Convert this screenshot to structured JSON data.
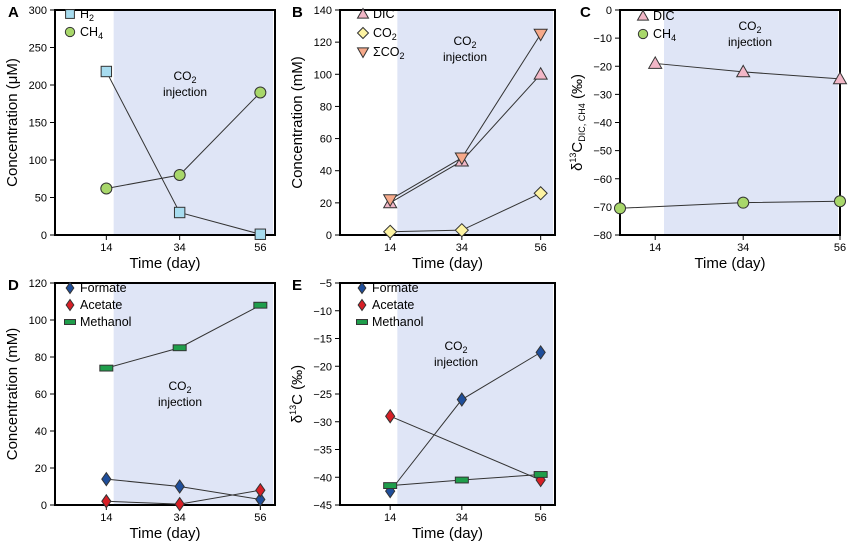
{
  "colors": {
    "shade": "#dfe5f6",
    "h2": "#a7dcef",
    "ch4": "#a8d76a",
    "dic": "#f2b7c7",
    "co2": "#fdf3a2",
    "sco2": "#f6a98a",
    "formate": "#1f4e9a",
    "acetate": "#d71f26",
    "methanol": "#1f9e4b"
  },
  "chart_data": [
    {
      "id": "A",
      "letter": "A",
      "type": "line",
      "x": [
        14,
        34,
        56
      ],
      "x_ticks": [
        "14",
        "34",
        "56"
      ],
      "xlabel": "Time (day)",
      "ylabel": "Concentration (μM)",
      "ylim": [
        0,
        300
      ],
      "y_ticks": [
        0,
        50,
        100,
        150,
        200,
        250,
        300
      ],
      "shade_from": 16,
      "annotation": {
        "line1": "CO2",
        "line2": "injection"
      },
      "series": [
        {
          "name": "H2",
          "legend_main": "H",
          "legend_sub": "2",
          "marker": "square",
          "color": "#a7dcef",
          "values": [
            218,
            30,
            1
          ]
        },
        {
          "name": "CH4",
          "legend_main": "CH",
          "legend_sub": "4",
          "marker": "circle",
          "color": "#a8d76a",
          "values": [
            62,
            80,
            190
          ]
        }
      ]
    },
    {
      "id": "B",
      "letter": "B",
      "type": "line",
      "x": [
        14,
        34,
        56
      ],
      "x_ticks": [
        "14",
        "34",
        "56"
      ],
      "xlabel": "Time (day)",
      "ylabel": "Concentration (mM)",
      "ylim": [
        0,
        140
      ],
      "y_ticks": [
        0,
        20,
        40,
        60,
        80,
        100,
        120,
        140
      ],
      "shade_from": 16,
      "annotation": {
        "line1": "CO2",
        "line2": "injection"
      },
      "series": [
        {
          "name": "DIC",
          "legend_main": "DIC",
          "legend_sub": "",
          "marker": "triangle-up",
          "color": "#f2b7c7",
          "values": [
            20,
            46,
            100
          ]
        },
        {
          "name": "CO2",
          "legend_main": "CO",
          "legend_sub": "2",
          "marker": "diamond",
          "color": "#fdf3a2",
          "values": [
            2,
            3,
            26
          ]
        },
        {
          "name": "ΣCO2",
          "legend_main": "ΣCO",
          "legend_sub": "2",
          "marker": "triangle-down",
          "color": "#f6a98a",
          "values": [
            22,
            48,
            125
          ]
        }
      ]
    },
    {
      "id": "C",
      "letter": "C",
      "type": "line",
      "x": [
        6,
        34,
        56
      ],
      "x_ticks": [
        "14",
        "34",
        "56"
      ],
      "x_tick_pos": [
        14,
        34,
        56
      ],
      "xlim": [
        6,
        56
      ],
      "xlabel": "Time (day)",
      "ylabel": "δ13C DIC, CH4 (‰)",
      "ylim": [
        -80,
        0
      ],
      "y_ticks": [
        0,
        -10,
        -20,
        -30,
        -40,
        -50,
        -60,
        -70,
        -80
      ],
      "shade_from": 16,
      "annotation": {
        "line1": "CO2",
        "line2": "injection"
      },
      "series": [
        {
          "name": "DIC",
          "legend_main": "DIC",
          "legend_sub": "",
          "marker": "triangle-up",
          "color": "#f2b7c7",
          "x": [
            14,
            34,
            56
          ],
          "values": [
            -19,
            -22,
            -24.5
          ]
        },
        {
          "name": "CH4",
          "legend_main": "CH",
          "legend_sub": "4",
          "marker": "circle",
          "color": "#a8d76a",
          "x": [
            6,
            34,
            56
          ],
          "values": [
            -70.5,
            -68.5,
            -68
          ]
        }
      ]
    },
    {
      "id": "D",
      "letter": "D",
      "type": "line",
      "x": [
        14,
        34,
        56
      ],
      "x_ticks": [
        "14",
        "34",
        "56"
      ],
      "xlabel": "Time (day)",
      "ylabel": "Concentration (mM)",
      "ylim": [
        0,
        120
      ],
      "y_ticks": [
        0,
        20,
        40,
        60,
        80,
        100,
        120
      ],
      "shade_from": 16,
      "annotation": {
        "line1": "CO2",
        "line2": "injection"
      },
      "series": [
        {
          "name": "Formate",
          "legend_main": "Formate",
          "legend_sub": "",
          "marker": "diamond",
          "color": "#1f4e9a",
          "values": [
            14,
            10,
            3
          ]
        },
        {
          "name": "Acetate",
          "legend_main": "Acetate",
          "legend_sub": "",
          "marker": "diamond",
          "color": "#d71f26",
          "values": [
            2,
            0.5,
            8
          ]
        },
        {
          "name": "Methanol",
          "legend_main": "Methanol",
          "legend_sub": "",
          "marker": "rect",
          "color": "#1f9e4b",
          "values": [
            74,
            85,
            108
          ]
        }
      ]
    },
    {
      "id": "E",
      "letter": "E",
      "type": "line",
      "x": [
        14,
        34,
        56
      ],
      "x_ticks": [
        "14",
        "34",
        "56"
      ],
      "xlabel": "Time (day)",
      "ylabel": "δ13C (‰)",
      "ylim": [
        -45,
        -5
      ],
      "y_ticks": [
        -5,
        -10,
        -15,
        -20,
        -25,
        -30,
        -35,
        -40,
        -45
      ],
      "shade_from": 16,
      "annotation": {
        "line1": "CO2",
        "line2": "injection"
      },
      "series": [
        {
          "name": "Formate",
          "legend_main": "Formate",
          "legend_sub": "",
          "marker": "diamond",
          "color": "#1f4e9a",
          "values": [
            -42.5,
            -26,
            -17.5
          ]
        },
        {
          "name": "Acetate",
          "legend_main": "Acetate",
          "legend_sub": "",
          "marker": "diamond",
          "color": "#d71f26",
          "values": [
            -29,
            null,
            -40.5
          ]
        },
        {
          "name": "Methanol",
          "legend_main": "Methanol",
          "legend_sub": "",
          "marker": "rect",
          "color": "#1f9e4b",
          "values": [
            -41.5,
            -40.5,
            -39.5
          ]
        }
      ]
    }
  ]
}
